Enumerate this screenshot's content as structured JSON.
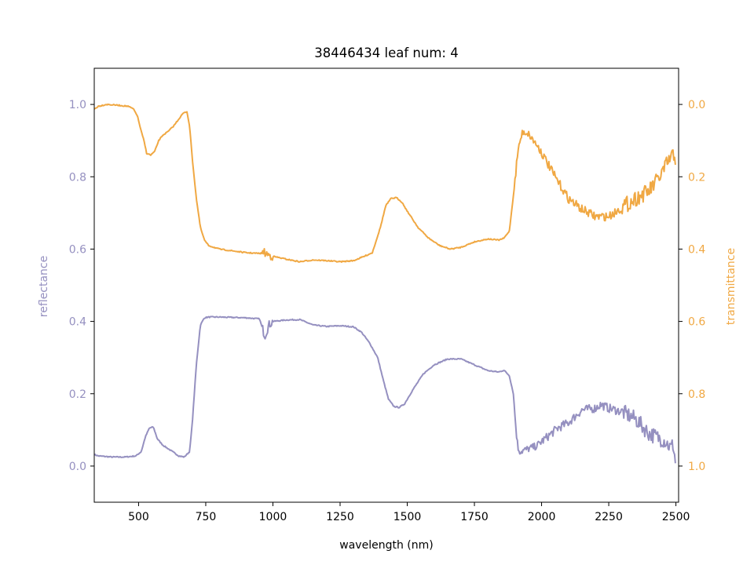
{
  "chart_data": {
    "type": "line",
    "title": "38446434 leaf num: 4",
    "xlabel": "wavelength (nm)",
    "ylabel_left": "reflectance",
    "ylabel_right": "transmittance",
    "xlim": [
      335,
      2510
    ],
    "ylim_left": [
      -0.1,
      1.1
    ],
    "ylim_right": [
      1.1,
      -0.1
    ],
    "right_axis_inverted": true,
    "grid": false,
    "x_ticks": [
      500,
      750,
      1000,
      1250,
      1500,
      1750,
      2000,
      2250,
      2500
    ],
    "x_tick_labels": [
      "500",
      "750",
      "1000",
      "1250",
      "1500",
      "1750",
      "2000",
      "2250",
      "2500"
    ],
    "y_left_ticks": [
      0.0,
      0.2,
      0.4,
      0.6,
      0.8,
      1.0
    ],
    "y_left_tick_labels": [
      "0.0",
      "0.2",
      "0.4",
      "0.6",
      "0.8",
      "1.0"
    ],
    "y_right_ticks": [
      0.0,
      0.2,
      0.4,
      0.6,
      0.8,
      1.0
    ],
    "y_right_tick_labels": [
      "0.0",
      "0.2",
      "0.4",
      "0.6",
      "0.8",
      "1.0"
    ],
    "colors": {
      "reflectance": "#9590c0",
      "transmittance": "#f0a843",
      "axis": "#000000"
    },
    "series": [
      {
        "axis": "left",
        "color": "#9590c0",
        "x": [
          335,
          350,
          400,
          450,
          490,
          510,
          525,
          540,
          555,
          570,
          590,
          610,
          630,
          650,
          670,
          690,
          700,
          715,
          730,
          745,
          760,
          800,
          850,
          900,
          950,
          970,
          975,
          985,
          1000,
          1050,
          1100,
          1150,
          1200,
          1250,
          1300,
          1330,
          1360,
          1390,
          1410,
          1430,
          1450,
          1470,
          1490,
          1520,
          1560,
          1600,
          1650,
          1700,
          1750,
          1800,
          1840,
          1860,
          1880,
          1895,
          1905,
          1912,
          1920,
          1940,
          1980,
          2020,
          2060,
          2100,
          2150,
          2200,
          2220,
          2250,
          2300,
          2350,
          2400,
          2430,
          2460,
          2480,
          2490,
          2500
        ],
        "values": [
          0.032,
          0.028,
          0.025,
          0.025,
          0.028,
          0.04,
          0.08,
          0.105,
          0.108,
          0.075,
          0.058,
          0.048,
          0.038,
          0.028,
          0.025,
          0.04,
          0.12,
          0.28,
          0.39,
          0.41,
          0.412,
          0.412,
          0.411,
          0.41,
          0.407,
          0.36,
          0.37,
          0.39,
          0.4,
          0.404,
          0.405,
          0.39,
          0.386,
          0.388,
          0.385,
          0.37,
          0.34,
          0.3,
          0.24,
          0.185,
          0.165,
          0.162,
          0.172,
          0.21,
          0.255,
          0.28,
          0.296,
          0.296,
          0.28,
          0.264,
          0.26,
          0.265,
          0.25,
          0.2,
          0.1,
          0.05,
          0.04,
          0.045,
          0.055,
          0.08,
          0.105,
          0.12,
          0.155,
          0.16,
          0.17,
          0.16,
          0.15,
          0.13,
          0.09,
          0.08,
          0.07,
          0.05,
          0.06,
          0.0
        ]
      },
      {
        "axis": "right",
        "color": "#f0a843",
        "x": [
          335,
          350,
          380,
          420,
          460,
          480,
          495,
          510,
          520,
          530,
          545,
          560,
          575,
          590,
          610,
          630,
          650,
          665,
          680,
          690,
          700,
          715,
          730,
          745,
          760,
          800,
          850,
          900,
          950,
          970,
          980,
          1000,
          1050,
          1100,
          1150,
          1200,
          1250,
          1300,
          1340,
          1370,
          1400,
          1420,
          1440,
          1460,
          1480,
          1500,
          1540,
          1580,
          1620,
          1660,
          1700,
          1750,
          1800,
          1840,
          1860,
          1880,
          1900,
          1910,
          1920,
          1930,
          1950,
          1990,
          2050,
          2100,
          2150,
          2200,
          2250,
          2300,
          2350,
          2400,
          2440,
          2470,
          2490,
          2500
        ],
        "values": [
          0.013,
          0.005,
          0.0,
          0.002,
          0.005,
          0.012,
          0.03,
          0.075,
          0.1,
          0.135,
          0.14,
          0.13,
          0.1,
          0.085,
          0.075,
          0.06,
          0.04,
          0.025,
          0.02,
          0.06,
          0.15,
          0.26,
          0.34,
          0.375,
          0.39,
          0.4,
          0.405,
          0.41,
          0.412,
          0.41,
          0.415,
          0.42,
          0.428,
          0.435,
          0.43,
          0.432,
          0.435,
          0.432,
          0.42,
          0.41,
          0.34,
          0.28,
          0.26,
          0.258,
          0.27,
          0.295,
          0.34,
          0.37,
          0.39,
          0.4,
          0.395,
          0.38,
          0.372,
          0.375,
          0.37,
          0.35,
          0.22,
          0.14,
          0.1,
          0.075,
          0.08,
          0.12,
          0.2,
          0.26,
          0.29,
          0.31,
          0.31,
          0.285,
          0.26,
          0.24,
          0.2,
          0.16,
          0.14,
          0.15
        ]
      }
    ]
  }
}
